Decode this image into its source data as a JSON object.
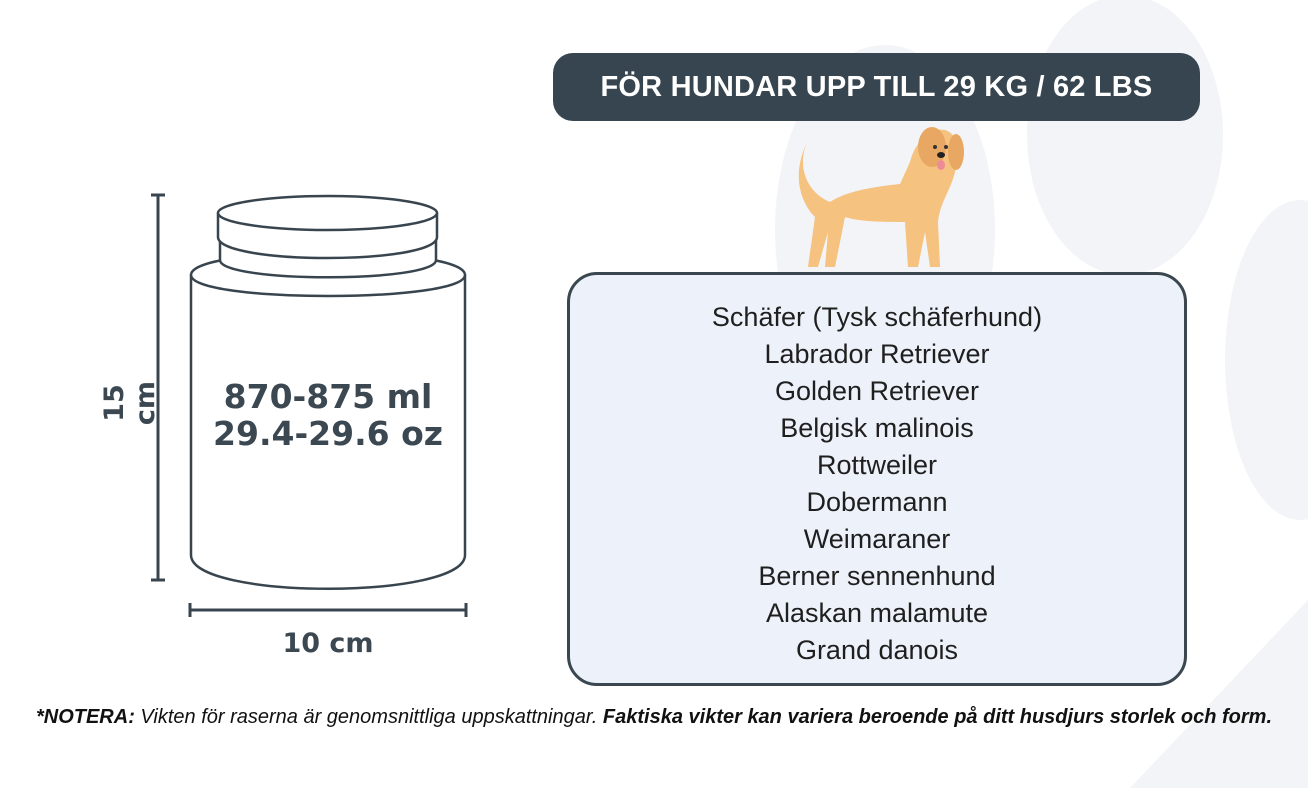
{
  "header": {
    "title": "FÖR HUNDAR UPP TILL 29 KG / 62 LBS"
  },
  "jar": {
    "volume_ml": "870-875 ml",
    "volume_oz": "29.4-29.6 oz",
    "height": "15 cm",
    "width": "10 cm"
  },
  "breeds": [
    "Schäfer (Tysk schäferhund)",
    "Labrador Retriever",
    "Golden Retriever",
    "Belgisk malinois",
    "Rottweiler",
    "Dobermann",
    "Weimaraner",
    "Berner sennenhund",
    "Alaskan malamute",
    "Grand danois"
  ],
  "note": {
    "label": "*NOTERA:",
    "text": " Vikten för raserna är genomsnittliga uppskattningar. ",
    "bold_text": "Faktiska vikter kan variera beroende på ditt husdjurs storlek och form."
  },
  "colors": {
    "dark": "#36454f",
    "box_fill": "#edf2fa",
    "dog": "#f5c27f",
    "paw_bg": "#f3f4f7"
  },
  "icons": {
    "dog": "golden-retriever-illustration",
    "background": "paw-print"
  }
}
